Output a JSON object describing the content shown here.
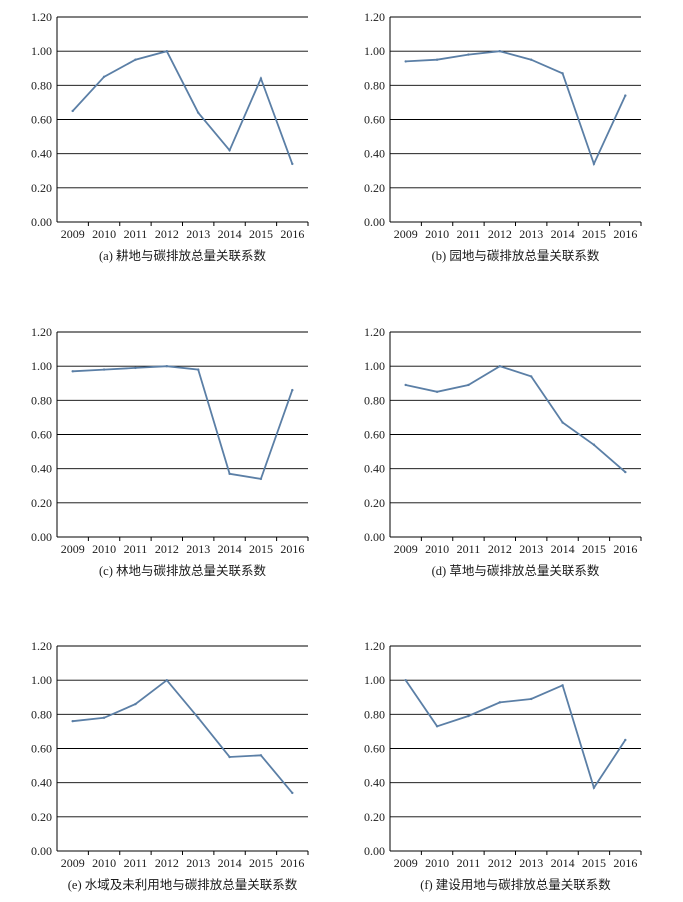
{
  "style": {
    "line_color": "#5b7fa6",
    "grid_color": "#000000",
    "text_color": "#1a1a1a"
  },
  "chart_data": [
    {
      "type": "line",
      "caption": "(a) 耕地与碳排放总量关联系数",
      "categories": [
        "2009",
        "2010",
        "2011",
        "2012",
        "2013",
        "2014",
        "2015",
        "2016"
      ],
      "y_ticks": [
        "0.00",
        "0.20",
        "0.40",
        "0.60",
        "0.80",
        "1.00",
        "1.20"
      ],
      "ylim": [
        0,
        1.2
      ],
      "grid": true,
      "values": [
        0.65,
        0.85,
        0.95,
        1.0,
        0.64,
        0.42,
        0.84,
        0.34
      ]
    },
    {
      "type": "line",
      "caption": "(b) 园地与碳排放总量关联系数",
      "categories": [
        "2009",
        "2010",
        "2011",
        "2012",
        "2013",
        "2014",
        "2015",
        "2016"
      ],
      "y_ticks": [
        "0.00",
        "0.20",
        "0.40",
        "0.60",
        "0.80",
        "1.00",
        "1.20"
      ],
      "ylim": [
        0,
        1.2
      ],
      "grid": true,
      "values": [
        0.94,
        0.95,
        0.98,
        1.0,
        0.95,
        0.87,
        0.34,
        0.74
      ]
    },
    {
      "type": "line",
      "caption": "(c) 林地与碳排放总量关联系数",
      "categories": [
        "2009",
        "2010",
        "2011",
        "2012",
        "2013",
        "2014",
        "2015",
        "2016"
      ],
      "y_ticks": [
        "0.00",
        "0.20",
        "0.40",
        "0.60",
        "0.80",
        "1.00",
        "1.20"
      ],
      "ylim": [
        0,
        1.2
      ],
      "grid": true,
      "values": [
        0.97,
        0.98,
        0.99,
        1.0,
        0.98,
        0.37,
        0.34,
        0.86
      ]
    },
    {
      "type": "line",
      "caption": "(d) 草地与碳排放总量关联系数",
      "categories": [
        "2009",
        "2010",
        "2011",
        "2012",
        "2013",
        "2014",
        "2015",
        "2016"
      ],
      "y_ticks": [
        "0.00",
        "0.20",
        "0.40",
        "0.60",
        "0.80",
        "1.00",
        "1.20"
      ],
      "ylim": [
        0,
        1.2
      ],
      "grid": true,
      "values": [
        0.89,
        0.85,
        0.89,
        1.0,
        0.94,
        0.67,
        0.54,
        0.38
      ]
    },
    {
      "type": "line",
      "caption": "(e) 水域及未利用地与碳排放总量关联系数",
      "categories": [
        "2009",
        "2010",
        "2011",
        "2012",
        "2013",
        "2014",
        "2015",
        "2016"
      ],
      "y_ticks": [
        "0.00",
        "0.20",
        "0.40",
        "0.60",
        "0.80",
        "1.00",
        "1.20"
      ],
      "ylim": [
        0,
        1.2
      ],
      "grid": true,
      "values": [
        0.76,
        0.78,
        0.86,
        1.0,
        0.78,
        0.55,
        0.56,
        0.34
      ]
    },
    {
      "type": "line",
      "caption": "(f) 建设用地与碳排放总量关联系数",
      "categories": [
        "2009",
        "2010",
        "2011",
        "2012",
        "2013",
        "2014",
        "2015",
        "2016"
      ],
      "y_ticks": [
        "0.00",
        "0.20",
        "0.40",
        "0.60",
        "0.80",
        "1.00",
        "1.20"
      ],
      "ylim": [
        0,
        1.2
      ],
      "grid": true,
      "values": [
        1.0,
        0.73,
        0.79,
        0.87,
        0.89,
        0.97,
        0.37,
        0.65
      ]
    }
  ]
}
